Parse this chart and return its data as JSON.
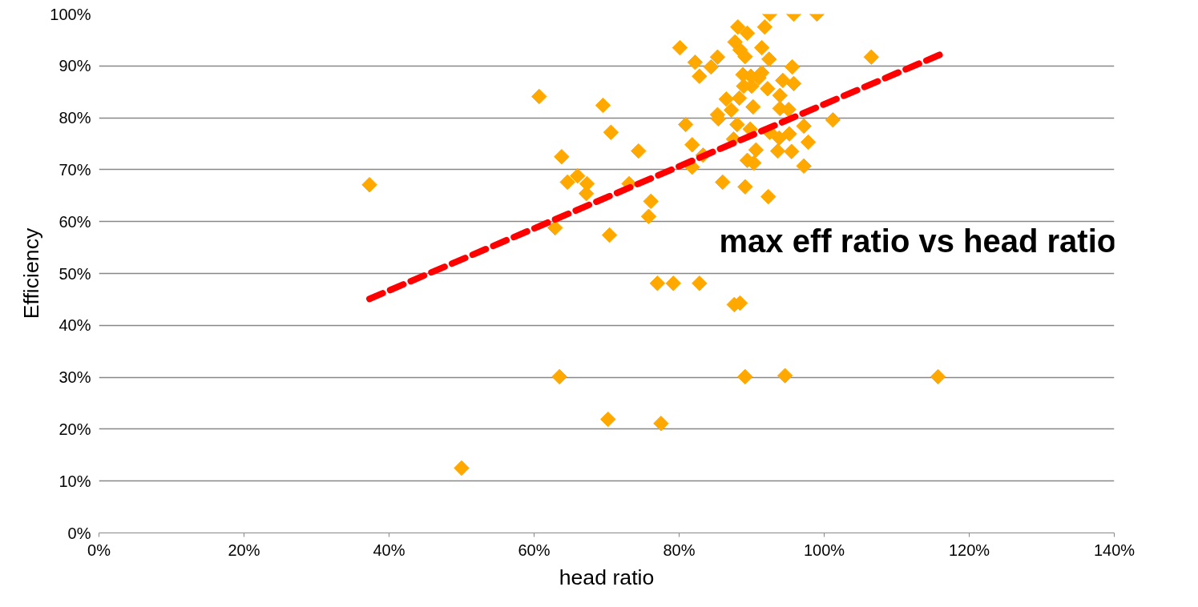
{
  "chart_data": {
    "type": "scatter",
    "title": "max eff ratio vs head ratio",
    "xlabel": "head ratio",
    "ylabel": "Efficiency",
    "xlim": [
      0,
      140
    ],
    "ylim": [
      0,
      100
    ],
    "xticks": [
      {
        "value": 0,
        "label": "0%"
      },
      {
        "value": 20,
        "label": "20%"
      },
      {
        "value": 40,
        "label": "40%"
      },
      {
        "value": 60,
        "label": "60%"
      },
      {
        "value": 80,
        "label": "80%"
      },
      {
        "value": 100,
        "label": "100%"
      },
      {
        "value": 120,
        "label": "120%"
      },
      {
        "value": 140,
        "label": "140%"
      }
    ],
    "yticks": [
      {
        "value": 0,
        "label": "0%"
      },
      {
        "value": 10,
        "label": "10%"
      },
      {
        "value": 20,
        "label": "20%"
      },
      {
        "value": 30,
        "label": "30%"
      },
      {
        "value": 40,
        "label": "40%"
      },
      {
        "value": 50,
        "label": "50%"
      },
      {
        "value": 60,
        "label": "60%"
      },
      {
        "value": 70,
        "label": "70%"
      },
      {
        "value": 80,
        "label": "80%"
      },
      {
        "value": 90,
        "label": "90%"
      },
      {
        "value": 100,
        "label": "100%"
      }
    ],
    "grid": "y",
    "marker": "diamond",
    "series": [
      {
        "color": "#ffa800",
        "x": [
          37.3,
          50,
          60.7,
          63.5,
          62.9,
          63.8,
          64.6,
          66.0,
          69.5,
          70.6,
          67.3,
          67.2,
          70.4,
          70.2,
          74.4,
          73.1,
          76.1,
          75.8,
          77.5,
          77.0,
          79.2,
          82.8,
          80.1,
          80.9,
          82.2,
          82.8,
          84.4,
          85.3,
          85.3,
          85.4,
          81.8,
          83.3,
          81.8,
          86.0,
          86.5,
          87.2,
          87.5,
          88.0,
          88.3,
          87.7,
          88.1,
          89.4,
          88.4,
          89.1,
          88.8,
          89.9,
          88.9,
          90.0,
          91.0,
          91.4,
          91.8,
          91.4,
          92.4,
          92.5,
          95.8,
          99.0,
          95.6,
          106.5,
          94.3,
          95.8,
          92.2,
          93.9,
          93.9,
          95.1,
          90.2,
          97.2,
          101.2,
          92.5,
          93.8,
          95.2,
          97.8,
          93.6,
          95.5,
          97.2,
          89.4,
          90.3,
          90.6,
          89.8,
          89.1,
          92.3,
          87.6,
          88.4,
          89.1,
          94.6,
          115.7
        ],
        "values": [
          67.1,
          12.5,
          84.1,
          30.1,
          58.8,
          72.5,
          67.6,
          68.8,
          82.4,
          77.2,
          67.3,
          65.4,
          57.4,
          21.9,
          73.6,
          67.3,
          63.9,
          61.0,
          21.1,
          48.1,
          48.1,
          48.1,
          93.5,
          78.7,
          90.7,
          88.0,
          89.8,
          91.7,
          80.6,
          79.8,
          74.8,
          72.8,
          70.5,
          67.6,
          83.6,
          81.5,
          75.9,
          78.7,
          83.8,
          94.6,
          97.5,
          96.3,
          93.1,
          91.8,
          88.3,
          88.0,
          86.1,
          86.1,
          87.7,
          88.7,
          97.5,
          93.5,
          91.3,
          100,
          100,
          100,
          89.8,
          91.7,
          87.2,
          86.6,
          85.6,
          84.3,
          81.8,
          81.6,
          82.1,
          78.4,
          79.6,
          77.2,
          76.1,
          76.9,
          75.3,
          73.6,
          73.5,
          70.7,
          71.8,
          71.3,
          73.8,
          77.8,
          66.7,
          64.8,
          44.0,
          44.3,
          30.1,
          30.3,
          30.1
        ]
      },
      {
        "type": "line",
        "color": "#ff0000",
        "line_style": "dashed",
        "marker": "none",
        "x": [
          37.3,
          116.2
        ],
        "values": [
          45.1,
          92.3
        ]
      }
    ]
  }
}
